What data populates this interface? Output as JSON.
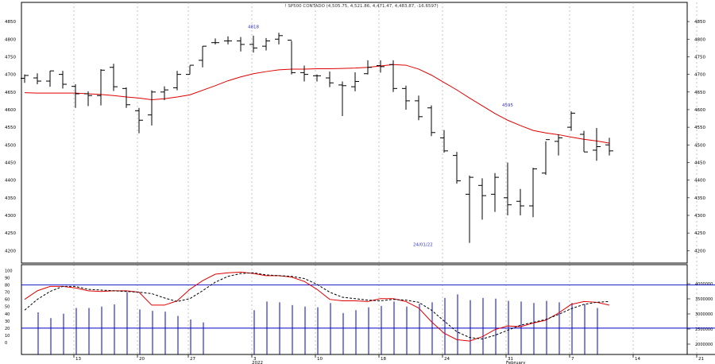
{
  "chart_data": [
    {
      "type": "ohlc",
      "title": "! SP500 CONTADO (4,505.75, 4,521.86, 4,471.47, 4,483.87, -16.6597)",
      "y_ticks": [
        "4850",
        "4800",
        "4750",
        "4700",
        "4650",
        "4600",
        "4550",
        "4500",
        "4450",
        "4400",
        "4350",
        "4300",
        "4250",
        "4200"
      ],
      "ylim": [
        4185,
        4875
      ],
      "x_ticks": [
        {
          "i": 4,
          "label": "13"
        },
        {
          "i": 9,
          "label": "20"
        },
        {
          "i": 13,
          "label": "27"
        },
        {
          "i": 18,
          "label": "3"
        },
        {
          "i": 23,
          "label": "10"
        },
        {
          "i": 28,
          "label": "18"
        },
        {
          "i": 33,
          "label": "24"
        },
        {
          "i": 38,
          "label": "31"
        },
        {
          "i": 43,
          "label": "7"
        },
        {
          "i": 48,
          "label": "14"
        },
        {
          "i": 53,
          "label": "21"
        }
      ],
      "x_secondary_labels": [
        {
          "i": 18,
          "label": "2022"
        },
        {
          "i": 38,
          "label": "February"
        }
      ],
      "annotations": [
        {
          "i": 18,
          "y": 4818,
          "text": "4818"
        },
        {
          "i": 38,
          "y": 4595,
          "text": "4595"
        },
        {
          "i": 31,
          "y": 4222,
          "text": "24/01/22"
        }
      ],
      "bars": [
        {
          "o": 4689,
          "h": 4700,
          "l": 4676,
          "c": 4697
        },
        {
          "o": 4690,
          "h": 4703,
          "l": 4672,
          "c": 4681
        },
        {
          "o": 4681,
          "h": 4710,
          "l": 4665,
          "c": 4710
        },
        {
          "o": 4700,
          "h": 4710,
          "l": 4660,
          "c": 4672
        },
        {
          "o": 4666,
          "h": 4672,
          "l": 4605,
          "c": 4645
        },
        {
          "o": 4645,
          "h": 4652,
          "l": 4610,
          "c": 4640
        },
        {
          "o": 4640,
          "h": 4715,
          "l": 4612,
          "c": 4712
        },
        {
          "o": 4720,
          "h": 4730,
          "l": 4653,
          "c": 4665
        },
        {
          "o": 4660,
          "h": 4663,
          "l": 4605,
          "c": 4614
        },
        {
          "o": 4597,
          "h": 4605,
          "l": 4533,
          "c": 4570
        },
        {
          "o": 4585,
          "h": 4655,
          "l": 4555,
          "c": 4650
        },
        {
          "o": 4650,
          "h": 4666,
          "l": 4627,
          "c": 4656
        },
        {
          "o": 4662,
          "h": 4710,
          "l": 4655,
          "c": 4700
        },
        {
          "o": 4700,
          "h": 4725,
          "l": 4700,
          "c": 4726
        },
        {
          "o": 4740,
          "h": 4780,
          "l": 4720,
          "c": 4780
        },
        {
          "o": 4790,
          "h": 4802,
          "l": 4785,
          "c": 4790
        },
        {
          "o": 4795,
          "h": 4808,
          "l": 4785,
          "c": 4795
        },
        {
          "o": 4795,
          "h": 4806,
          "l": 4765,
          "c": 4785
        },
        {
          "o": 4785,
          "h": 4810,
          "l": 4762,
          "c": 4775
        },
        {
          "o": 4780,
          "h": 4803,
          "l": 4768,
          "c": 4795
        },
        {
          "o": 4800,
          "h": 4818,
          "l": 4785,
          "c": 4810
        },
        {
          "o": 4797,
          "h": 4795,
          "l": 4700,
          "c": 4705
        },
        {
          "o": 4705,
          "h": 4725,
          "l": 4680,
          "c": 4700
        },
        {
          "o": 4696,
          "h": 4700,
          "l": 4680,
          "c": 4696
        },
        {
          "o": 4690,
          "h": 4708,
          "l": 4664,
          "c": 4676
        },
        {
          "o": 4670,
          "h": 4680,
          "l": 4582,
          "c": 4668
        },
        {
          "o": 4665,
          "h": 4706,
          "l": 4652,
          "c": 4680
        },
        {
          "o": 4702,
          "h": 4740,
          "l": 4700,
          "c": 4720
        },
        {
          "o": 4725,
          "h": 4740,
          "l": 4705,
          "c": 4722
        },
        {
          "o": 4728,
          "h": 4740,
          "l": 4650,
          "c": 4660
        },
        {
          "o": 4660,
          "h": 4668,
          "l": 4600,
          "c": 4625
        },
        {
          "o": 4625,
          "h": 4640,
          "l": 4570,
          "c": 4580
        },
        {
          "o": 4605,
          "h": 4612,
          "l": 4525,
          "c": 4535
        },
        {
          "o": 4520,
          "h": 4542,
          "l": 4478,
          "c": 4483
        },
        {
          "o": 4470,
          "h": 4480,
          "l": 4390,
          "c": 4398
        },
        {
          "o": 4360,
          "h": 4413,
          "l": 4222,
          "c": 4408
        },
        {
          "o": 4385,
          "h": 4405,
          "l": 4288,
          "c": 4356
        },
        {
          "o": 4360,
          "h": 4420,
          "l": 4310,
          "c": 4408
        },
        {
          "o": 4350,
          "h": 4450,
          "l": 4300,
          "c": 4330
        },
        {
          "o": 4340,
          "h": 4375,
          "l": 4300,
          "c": 4327
        },
        {
          "o": 4327,
          "h": 4435,
          "l": 4295,
          "c": 4432
        },
        {
          "o": 4420,
          "h": 4510,
          "l": 4415,
          "c": 4515
        },
        {
          "o": 4510,
          "h": 4530,
          "l": 4470,
          "c": 4520
        },
        {
          "o": 4550,
          "h": 4595,
          "l": 4540,
          "c": 4590
        },
        {
          "o": 4530,
          "h": 4540,
          "l": 4480,
          "c": 4480
        },
        {
          "o": 4485,
          "h": 4548,
          "l": 4455,
          "c": 4495
        },
        {
          "o": 4500,
          "h": 4520,
          "l": 4470,
          "c": 4483
        }
      ],
      "moving_average": {
        "color": "#e00000",
        "values": [
          4648,
          4647,
          4647,
          4647,
          4647,
          4645,
          4643,
          4640,
          4636,
          4633,
          4628,
          4631,
          4636,
          4642,
          4655,
          4668,
          4682,
          4693,
          4702,
          4708,
          4713,
          4715,
          4715,
          4716,
          4716,
          4717,
          4718,
          4720,
          4724,
          4728,
          4726,
          4715,
          4698,
          4677,
          4656,
          4633,
          4611,
          4589,
          4570,
          4555,
          4541,
          4534,
          4529,
          4522,
          4516,
          4511,
          4505
        ]
      },
      "grid": true,
      "color": "#000000"
    },
    {
      "type": "line",
      "ylabels": [
        "100",
        "90",
        "80",
        "70",
        "60",
        "50",
        "40",
        "30",
        "20",
        "10",
        "0"
      ],
      "ylim": [
        -10,
        105
      ],
      "hlines": [
        80,
        20
      ],
      "hline_color": "#0000cc",
      "right_labels": [
        "4000000",
        "3500000",
        "3000000",
        "2500000",
        "2000000"
      ],
      "series": [
        {
          "style": "solid",
          "color": "#e00000",
          "values": [
            60,
            72,
            78,
            78,
            76,
            72,
            71,
            72,
            72,
            70,
            52,
            52,
            58,
            74,
            86,
            95,
            97,
            98,
            96,
            93,
            93,
            91,
            85,
            74,
            60,
            58,
            58,
            57,
            61,
            61,
            57,
            48,
            29,
            13,
            4,
            2,
            8,
            18,
            23,
            22,
            27,
            31,
            41,
            53,
            57,
            56,
            52
          ]
        },
        {
          "style": "dashed",
          "color": "#000000",
          "values": [
            45,
            60,
            71,
            78,
            78,
            74,
            73,
            72,
            71,
            70,
            68,
            62,
            57,
            61,
            72,
            84,
            92,
            96,
            97,
            94,
            93,
            92,
            89,
            81,
            70,
            63,
            61,
            59,
            58,
            60,
            59,
            56,
            45,
            30,
            15,
            7,
            5,
            10,
            17,
            24,
            28,
            32,
            39,
            47,
            53,
            56,
            57
          ]
        }
      ],
      "volume_bars": [
        {
          "i": 1,
          "value": 47
        },
        {
          "i": 2,
          "value": 39
        },
        {
          "i": 3,
          "value": 45
        },
        {
          "i": 4,
          "value": 53
        },
        {
          "i": 5,
          "value": 53
        },
        {
          "i": 6,
          "value": 55
        },
        {
          "i": 7,
          "value": 58
        },
        {
          "i": 8,
          "value": 75
        },
        {
          "i": 9,
          "value": 51
        },
        {
          "i": 10,
          "value": 49
        },
        {
          "i": 11,
          "value": 48
        },
        {
          "i": 12,
          "value": 42
        },
        {
          "i": 13,
          "value": 37
        },
        {
          "i": 14,
          "value": 33
        },
        {
          "i": 18,
          "value": 50
        },
        {
          "i": 19,
          "value": 62
        },
        {
          "i": 20,
          "value": 61
        },
        {
          "i": 21,
          "value": 57
        },
        {
          "i": 22,
          "value": 55
        },
        {
          "i": 23,
          "value": 54
        },
        {
          "i": 24,
          "value": 60
        },
        {
          "i": 25,
          "value": 46
        },
        {
          "i": 26,
          "value": 50
        },
        {
          "i": 27,
          "value": 54
        },
        {
          "i": 28,
          "value": 56
        },
        {
          "i": 29,
          "value": 62
        },
        {
          "i": 30,
          "value": 55
        },
        {
          "i": 31,
          "value": 59
        },
        {
          "i": 32,
          "value": 61
        },
        {
          "i": 33,
          "value": 67
        },
        {
          "i": 34,
          "value": 72
        },
        {
          "i": 35,
          "value": 64
        },
        {
          "i": 36,
          "value": 67
        },
        {
          "i": 37,
          "value": 66
        },
        {
          "i": 38,
          "value": 63
        },
        {
          "i": 39,
          "value": 62
        },
        {
          "i": 40,
          "value": 60
        },
        {
          "i": 41,
          "value": 63
        },
        {
          "i": 42,
          "value": 61
        },
        {
          "i": 43,
          "value": 60
        },
        {
          "i": 44,
          "value": 58
        },
        {
          "i": 45,
          "value": 53
        }
      ],
      "volume_color": "#0000cc"
    }
  ]
}
